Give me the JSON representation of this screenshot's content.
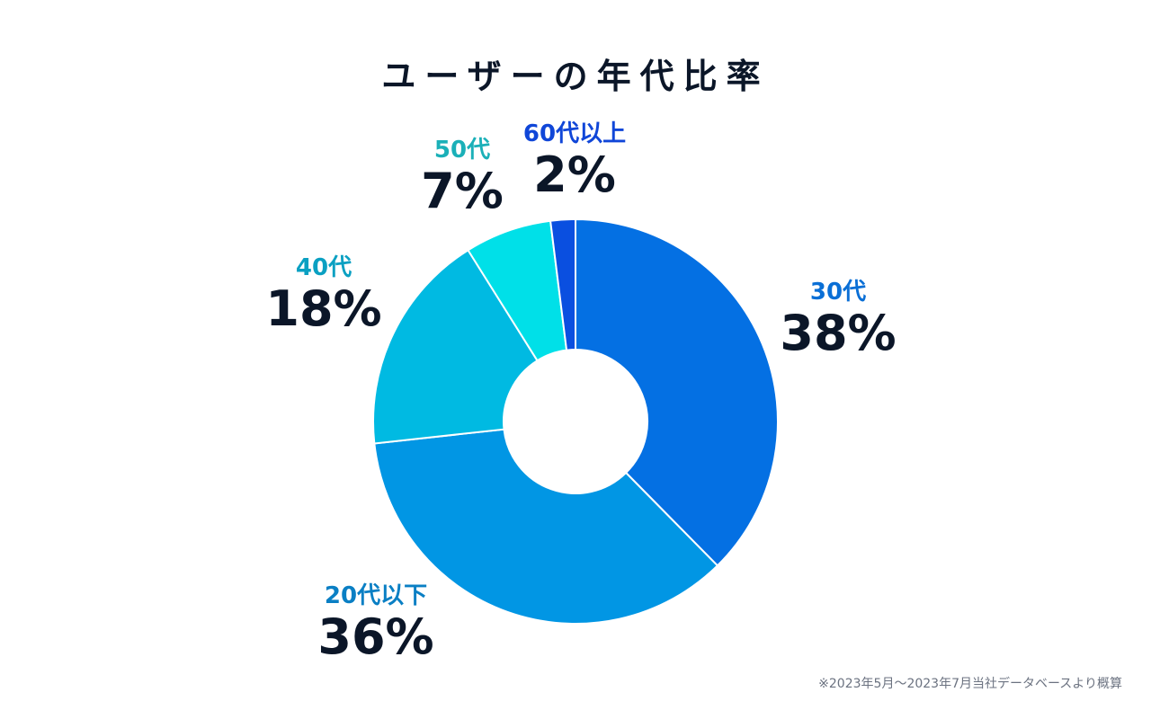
{
  "title": "ユーザーの年代比率",
  "footnote": "※2023年5月〜2023年7月当社データベースより概算",
  "chart_data": {
    "type": "pie",
    "title": "ユーザーの年代比率",
    "unit": "%",
    "slices": [
      {
        "label": "30代",
        "value": 38,
        "display": "38%",
        "color": "#0470e3",
        "label_color": "#0a6fd6"
      },
      {
        "label": "20代以下",
        "value": 36,
        "display": "36%",
        "color": "#0196e4",
        "label_color": "#0a7fc4"
      },
      {
        "label": "40代",
        "value": 18,
        "display": "18%",
        "color": "#00bae2",
        "label_color": "#0aa0c2"
      },
      {
        "label": "50代",
        "value": 7,
        "display": "7%",
        "color": "#00e0e8",
        "label_color": "#1bb0b8"
      },
      {
        "label": "60代以上",
        "value": 2,
        "display": "2%",
        "color": "#0a4fe0",
        "label_color": "#1046d8"
      }
    ]
  }
}
